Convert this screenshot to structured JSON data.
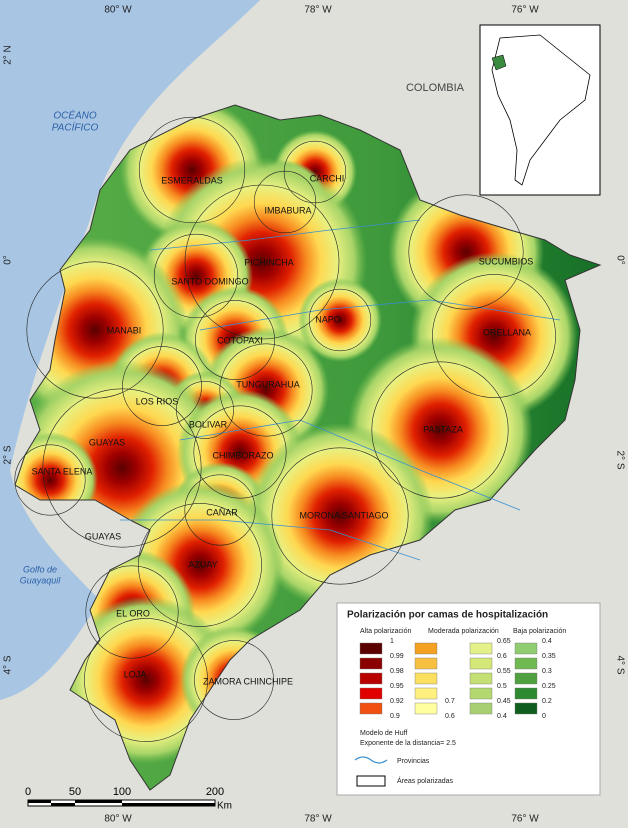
{
  "coordinates": {
    "top": [
      "80° W",
      "78° W",
      "76° W"
    ],
    "bottom": [
      "80° W",
      "78° W",
      "76° W"
    ],
    "left": [
      "2° N",
      "0°",
      "2° S",
      "4° S"
    ],
    "right": [
      "0°",
      "2° S",
      "4° S"
    ]
  },
  "places": {
    "ocean": [
      "OCÉANO",
      "PACÍFICO"
    ],
    "country": "COLOMBIA",
    "gulf": [
      "Golfo de",
      "Guayaquil"
    ]
  },
  "provinces": [
    "ESMERALDAS",
    "CARCHI",
    "IMBABURA",
    "PICHINCHA",
    "SUCUMBIOS",
    "SANTO DOMINGO",
    "NAPO",
    "MANABI",
    "ORELLANA",
    "COTOPAXI",
    "TUNGURAHUA",
    "LOS RIOS",
    "BOLIVAR",
    "PASTAZA",
    "GUAYAS",
    "SANTA ELENA",
    "CHIMBORAZO",
    "CAÑAR",
    "MORONA SANTIAGO",
    "GUAYAS",
    "AZUAY",
    "EL ORO",
    "LOJA",
    "ZAMORA CHINCHIPE"
  ],
  "legend": {
    "title": "Polarización por camas de hospitalización",
    "groups": [
      {
        "name": "Alta polarización",
        "breaks": [
          "1",
          "0.99",
          "0.98",
          "0.95",
          "0.92",
          "0.9"
        ]
      },
      {
        "name": "Moderada polarización",
        "breaks": [
          "0.7",
          "0.6"
        ],
        "breaks2": [
          "0.65",
          "0.6",
          "0.55",
          "0.5",
          "0.45",
          "0.4"
        ]
      },
      {
        "name": "Baja polarización",
        "breaks": [
          "0.4",
          "0.35",
          "0.3",
          "0.25",
          "0.2",
          "0"
        ]
      }
    ],
    "model": "Modelo de Huff",
    "exponent": "Exponente de la distancia= 2.5",
    "provinces_label": "Provincias",
    "areas_label": "Áreas polarizadas"
  },
  "scale": {
    "labels": [
      "0",
      "50",
      "100",
      "200"
    ],
    "unit": "Km"
  }
}
